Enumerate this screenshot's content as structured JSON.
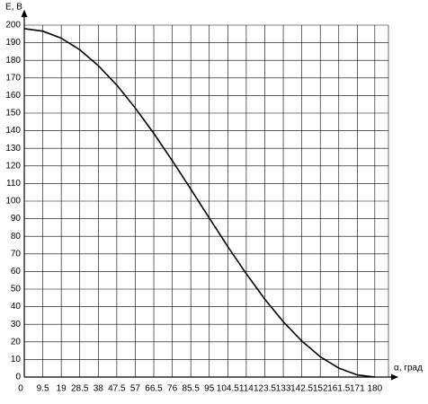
{
  "chart_data": {
    "type": "line",
    "y_label": "E, В",
    "x_label": "α, град",
    "x": [
      0,
      9.5,
      19,
      28.5,
      38,
      47.5,
      57,
      66.5,
      76,
      85.5,
      95,
      104.5,
      114,
      123.5,
      133,
      142.5,
      152,
      161.5,
      171,
      180
    ],
    "series": [
      {
        "name": "E",
        "color": "#000000",
        "values": [
          198,
          196.6,
          192.6,
          186,
          177,
          165.9,
          152.9,
          138.5,
          123,
          106.8,
          90.4,
          74.2,
          58.7,
          44.3,
          31.5,
          20.5,
          11.6,
          5.1,
          1.2,
          0
        ]
      }
    ],
    "xlim": [
      0,
      187
    ],
    "ylim": [
      0,
      200
    ],
    "xticks": [
      0,
      9.5,
      19,
      28.5,
      38,
      47.5,
      57,
      66.5,
      76,
      85.5,
      95,
      104.5,
      114,
      123.5,
      133,
      142.5,
      152,
      161.5,
      171,
      180
    ],
    "yticks": [
      0,
      10,
      20,
      30,
      40,
      50,
      60,
      70,
      80,
      90,
      100,
      110,
      120,
      130,
      140,
      150,
      160,
      170,
      180,
      190,
      200
    ],
    "grid": true
  }
}
